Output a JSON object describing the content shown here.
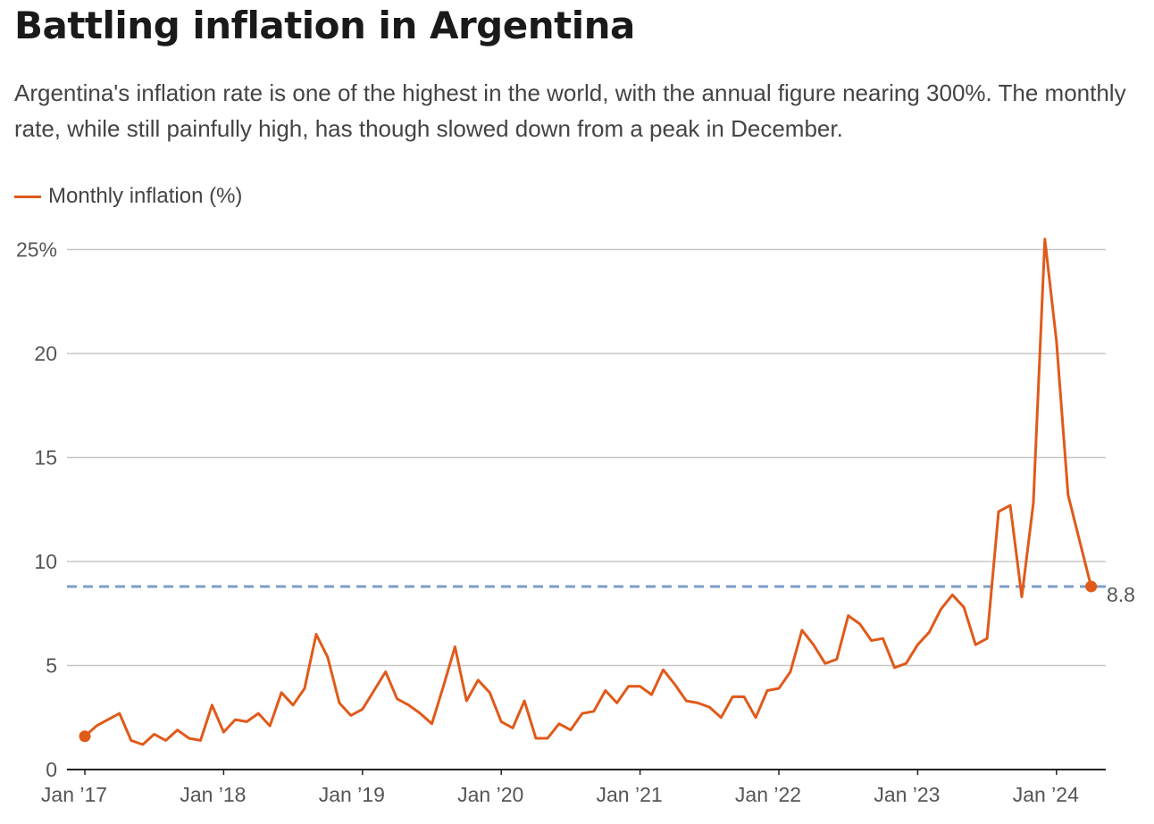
{
  "title": "Battling inflation in Argentina",
  "subtitle": "Argentina's inflation rate is one of the highest in the world, with the annual figure nearing 300%. The monthly rate, while still painfully high, has though slowed down from a peak in December.",
  "colors": {
    "line": "#e05a1a",
    "reference": "#7f9cc6",
    "grid": "#c8c8c8",
    "axis": "#222222"
  },
  "chart_data": {
    "type": "line",
    "title": "Battling inflation in Argentina",
    "xlabel": "",
    "ylabel": "",
    "ylim": [
      0,
      25
    ],
    "grid": true,
    "legend_position": "top-left",
    "y_ticks": [
      {
        "value": 0,
        "label": "0"
      },
      {
        "value": 5,
        "label": "5"
      },
      {
        "value": 10,
        "label": "10"
      },
      {
        "value": 15,
        "label": "15"
      },
      {
        "value": 20,
        "label": "20"
      },
      {
        "value": 25,
        "label": "25%"
      }
    ],
    "x_ticks": [
      {
        "date": "2017-01",
        "label": "Jan ’17"
      },
      {
        "date": "2018-01",
        "label": "Jan ’18"
      },
      {
        "date": "2019-01",
        "label": "Jan ’19"
      },
      {
        "date": "2020-01",
        "label": "Jan ’20"
      },
      {
        "date": "2021-01",
        "label": "Jan ’21"
      },
      {
        "date": "2022-01",
        "label": "Jan ’22"
      },
      {
        "date": "2023-01",
        "label": "Jan ’23"
      },
      {
        "date": "2024-01",
        "label": "Jan ’24"
      }
    ],
    "reference_line": {
      "value": 8.8,
      "label": "8.8"
    },
    "series": [
      {
        "name": "Monthly inflation (%)",
        "x": [
          "2017-01",
          "2017-02",
          "2017-03",
          "2017-04",
          "2017-05",
          "2017-06",
          "2017-07",
          "2017-08",
          "2017-09",
          "2017-10",
          "2017-11",
          "2017-12",
          "2018-01",
          "2018-02",
          "2018-03",
          "2018-04",
          "2018-05",
          "2018-06",
          "2018-07",
          "2018-08",
          "2018-09",
          "2018-10",
          "2018-11",
          "2018-12",
          "2019-01",
          "2019-02",
          "2019-03",
          "2019-04",
          "2019-05",
          "2019-06",
          "2019-07",
          "2019-08",
          "2019-09",
          "2019-10",
          "2019-11",
          "2019-12",
          "2020-01",
          "2020-02",
          "2020-03",
          "2020-04",
          "2020-05",
          "2020-06",
          "2020-07",
          "2020-08",
          "2020-09",
          "2020-10",
          "2020-11",
          "2020-12",
          "2021-01",
          "2021-02",
          "2021-03",
          "2021-04",
          "2021-05",
          "2021-06",
          "2021-07",
          "2021-08",
          "2021-09",
          "2021-10",
          "2021-11",
          "2021-12",
          "2022-01",
          "2022-02",
          "2022-03",
          "2022-04",
          "2022-05",
          "2022-06",
          "2022-07",
          "2022-08",
          "2022-09",
          "2022-10",
          "2022-11",
          "2022-12",
          "2023-01",
          "2023-02",
          "2023-03",
          "2023-04",
          "2023-05",
          "2023-06",
          "2023-07",
          "2023-08",
          "2023-09",
          "2023-10",
          "2023-11",
          "2023-12",
          "2024-01",
          "2024-02",
          "2024-03",
          "2024-04"
        ],
        "values": [
          1.6,
          2.1,
          2.4,
          2.7,
          1.4,
          1.2,
          1.7,
          1.4,
          1.9,
          1.5,
          1.4,
          3.1,
          1.8,
          2.4,
          2.3,
          2.7,
          2.1,
          3.7,
          3.1,
          3.9,
          6.5,
          5.4,
          3.2,
          2.6,
          2.9,
          3.8,
          4.7,
          3.4,
          3.1,
          2.7,
          2.2,
          4.0,
          5.9,
          3.3,
          4.3,
          3.7,
          2.3,
          2.0,
          3.3,
          1.5,
          1.5,
          2.2,
          1.9,
          2.7,
          2.8,
          3.8,
          3.2,
          4.0,
          4.0,
          3.6,
          4.8,
          4.1,
          3.3,
          3.2,
          3.0,
          2.5,
          3.5,
          3.5,
          2.5,
          3.8,
          3.9,
          4.7,
          6.7,
          6.0,
          5.1,
          5.3,
          7.4,
          7.0,
          6.2,
          6.3,
          4.9,
          5.1,
          6.0,
          6.6,
          7.7,
          8.4,
          7.8,
          6.0,
          6.3,
          12.4,
          12.7,
          8.3,
          12.8,
          25.5,
          20.6,
          13.2,
          11.0,
          8.8
        ]
      }
    ]
  }
}
